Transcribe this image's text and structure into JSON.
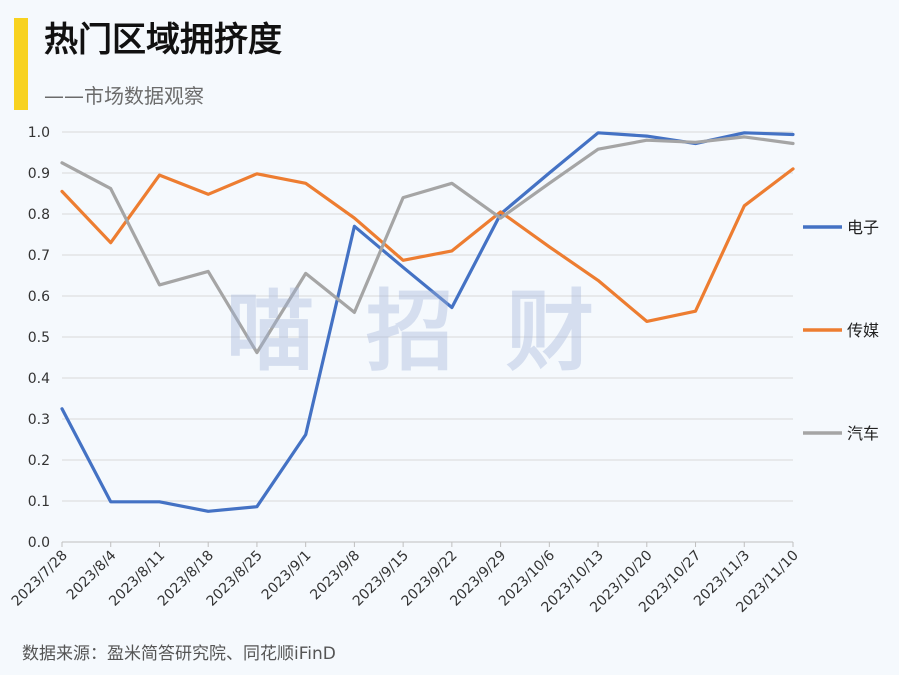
{
  "header": {
    "title": "热门区域拥挤度",
    "subtitle": "——市场数据观察"
  },
  "watermark": "喵招财",
  "footer": {
    "source": "数据来源：盈米简答研究院、同花顺iFinD"
  },
  "colors": {
    "background": "#f5f9fd",
    "accent": "#f8d21f",
    "grid": "#d9d9d9"
  },
  "chart_data": {
    "type": "line",
    "x": [
      "2023/7/28",
      "2023/8/4",
      "2023/8/11",
      "2023/8/18",
      "2023/8/25",
      "2023/9/1",
      "2023/9/8",
      "2023/9/15",
      "2023/9/22",
      "2023/9/29",
      "2023/10/6",
      "2023/10/13",
      "2023/10/20",
      "2023/10/27",
      "2023/11/3",
      "2023/11/10"
    ],
    "ylim": [
      0,
      1
    ],
    "yticks": [
      "0.0",
      "0.1",
      "0.2",
      "0.3",
      "0.4",
      "0.5",
      "0.6",
      "0.7",
      "0.8",
      "0.9",
      "1.0"
    ],
    "grid": true,
    "legend_position": "right",
    "series": [
      {
        "name": "电子",
        "color": "#4472c4",
        "values": [
          0.325,
          0.098,
          0.098,
          0.075,
          0.086,
          0.262,
          0.77,
          0.67,
          0.572,
          0.8,
          0.9,
          0.998,
          0.99,
          0.972,
          0.998,
          0.994
        ]
      },
      {
        "name": "传媒",
        "color": "#ed7d31",
        "values": [
          0.855,
          0.73,
          0.895,
          0.848,
          0.898,
          0.875,
          0.79,
          0.687,
          0.71,
          0.805,
          0.72,
          0.638,
          0.538,
          0.563,
          0.82,
          0.91
        ]
      },
      {
        "name": "汽车",
        "color": "#a5a5a5",
        "values": [
          0.925,
          0.862,
          0.627,
          0.66,
          0.462,
          0.655,
          0.56,
          0.84,
          0.875,
          0.79,
          0.875,
          0.958,
          0.98,
          0.975,
          0.988,
          0.972
        ]
      }
    ]
  }
}
